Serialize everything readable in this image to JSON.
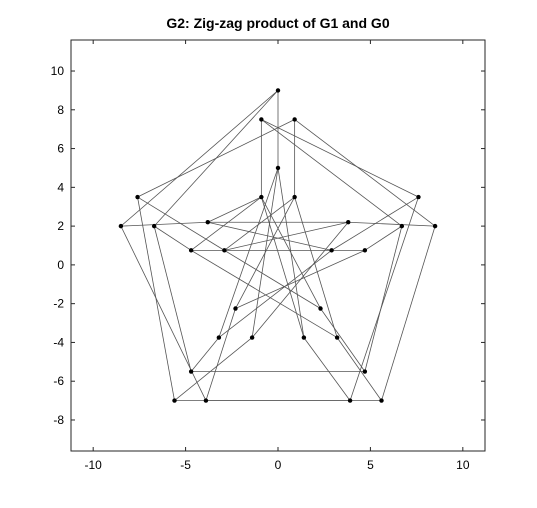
{
  "chart_data": {
    "type": "graph",
    "title": "G2: Zig-zag product of G1 and G0",
    "xlabel": "",
    "ylabel": "",
    "xlim": [
      -11.2,
      11.2
    ],
    "ylim": [
      -9.6,
      11.6
    ],
    "xticks": [
      -10,
      -5,
      0,
      5,
      10
    ],
    "yticks": [
      -8,
      -6,
      -4,
      -2,
      0,
      2,
      4,
      6,
      8,
      10
    ],
    "xtick_labels": [
      "-10",
      "-5",
      "0",
      "5",
      "10"
    ],
    "ytick_labels": [
      "-8",
      "-6",
      "-4",
      "-2",
      "0",
      "2",
      "4",
      "6",
      "8",
      "10"
    ],
    "grid": false,
    "nodes": [
      {
        "id": "o1",
        "x": 0.0,
        "y": 9.0
      },
      {
        "id": "o2",
        "x": -0.9,
        "y": 7.5
      },
      {
        "id": "o3",
        "x": 0.9,
        "y": 7.5
      },
      {
        "id": "o4",
        "x": 7.6,
        "y": 3.5
      },
      {
        "id": "o5",
        "x": 8.5,
        "y": 2.0
      },
      {
        "id": "o6",
        "x": 6.7,
        "y": 2.0
      },
      {
        "id": "o7",
        "x": 5.6,
        "y": -7.0
      },
      {
        "id": "o8",
        "x": 3.9,
        "y": -7.0
      },
      {
        "id": "o9",
        "x": 4.7,
        "y": -5.5
      },
      {
        "id": "o10",
        "x": -5.6,
        "y": -7.0
      },
      {
        "id": "o11",
        "x": -3.9,
        "y": -7.0
      },
      {
        "id": "o12",
        "x": -4.7,
        "y": -5.5
      },
      {
        "id": "o13",
        "x": -7.6,
        "y": 3.5
      },
      {
        "id": "o14",
        "x": -8.5,
        "y": 2.0
      },
      {
        "id": "o15",
        "x": -6.7,
        "y": 2.0
      },
      {
        "id": "i1",
        "x": 0.0,
        "y": 5.0
      },
      {
        "id": "i2",
        "x": -0.9,
        "y": 3.5
      },
      {
        "id": "i3",
        "x": 0.9,
        "y": 3.5
      },
      {
        "id": "i4",
        "x": 3.8,
        "y": 2.2
      },
      {
        "id": "i5",
        "x": 4.7,
        "y": 0.75
      },
      {
        "id": "i6",
        "x": 2.9,
        "y": 0.75
      },
      {
        "id": "i7",
        "x": 2.3,
        "y": -2.25
      },
      {
        "id": "i8",
        "x": 3.2,
        "y": -3.75
      },
      {
        "id": "i9",
        "x": 1.4,
        "y": -3.75
      },
      {
        "id": "i10",
        "x": -2.3,
        "y": -2.25
      },
      {
        "id": "i11",
        "x": -1.4,
        "y": -3.75
      },
      {
        "id": "i12",
        "x": -3.2,
        "y": -3.75
      },
      {
        "id": "i13",
        "x": -3.8,
        "y": 2.2
      },
      {
        "id": "i14",
        "x": -2.9,
        "y": 0.75
      },
      {
        "id": "i15",
        "x": -4.7,
        "y": 0.75
      }
    ],
    "edges": [
      [
        "o1",
        "o14"
      ],
      [
        "o1",
        "o15"
      ],
      [
        "o2",
        "o4"
      ],
      [
        "o2",
        "o6"
      ],
      [
        "o3",
        "o5"
      ],
      [
        "o3",
        "o13"
      ],
      [
        "o4",
        "o8"
      ],
      [
        "o5",
        "o7"
      ],
      [
        "o6",
        "o9"
      ],
      [
        "o7",
        "o11"
      ],
      [
        "o8",
        "o10"
      ],
      [
        "o9",
        "o12"
      ],
      [
        "o10",
        "o13"
      ],
      [
        "o11",
        "o14"
      ],
      [
        "o12",
        "o15"
      ],
      [
        "o1",
        "i1"
      ],
      [
        "o2",
        "i2"
      ],
      [
        "o3",
        "i3"
      ],
      [
        "o4",
        "i6"
      ],
      [
        "o5",
        "i4"
      ],
      [
        "o6",
        "i5"
      ],
      [
        "o7",
        "i8"
      ],
      [
        "o8",
        "i9"
      ],
      [
        "o9",
        "i7"
      ],
      [
        "o10",
        "i11"
      ],
      [
        "o11",
        "i10"
      ],
      [
        "o12",
        "i12"
      ],
      [
        "o13",
        "i14"
      ],
      [
        "o14",
        "i13"
      ],
      [
        "o15",
        "i15"
      ],
      [
        "i1",
        "i11"
      ],
      [
        "i1",
        "i12"
      ],
      [
        "i2",
        "i7"
      ],
      [
        "i2",
        "i9"
      ],
      [
        "i3",
        "i10"
      ],
      [
        "i3",
        "i8"
      ],
      [
        "i4",
        "i13"
      ],
      [
        "i4",
        "i14"
      ],
      [
        "i5",
        "i15"
      ],
      [
        "i6",
        "i13"
      ],
      [
        "i7",
        "i14"
      ],
      [
        "i8",
        "i15"
      ],
      [
        "i9",
        "i1"
      ],
      [
        "i10",
        "i5"
      ],
      [
        "i11",
        "i4"
      ],
      [
        "i12",
        "i6"
      ],
      [
        "i13",
        "i2"
      ],
      [
        "i14",
        "i3"
      ],
      [
        "i15",
        "i2"
      ]
    ]
  }
}
